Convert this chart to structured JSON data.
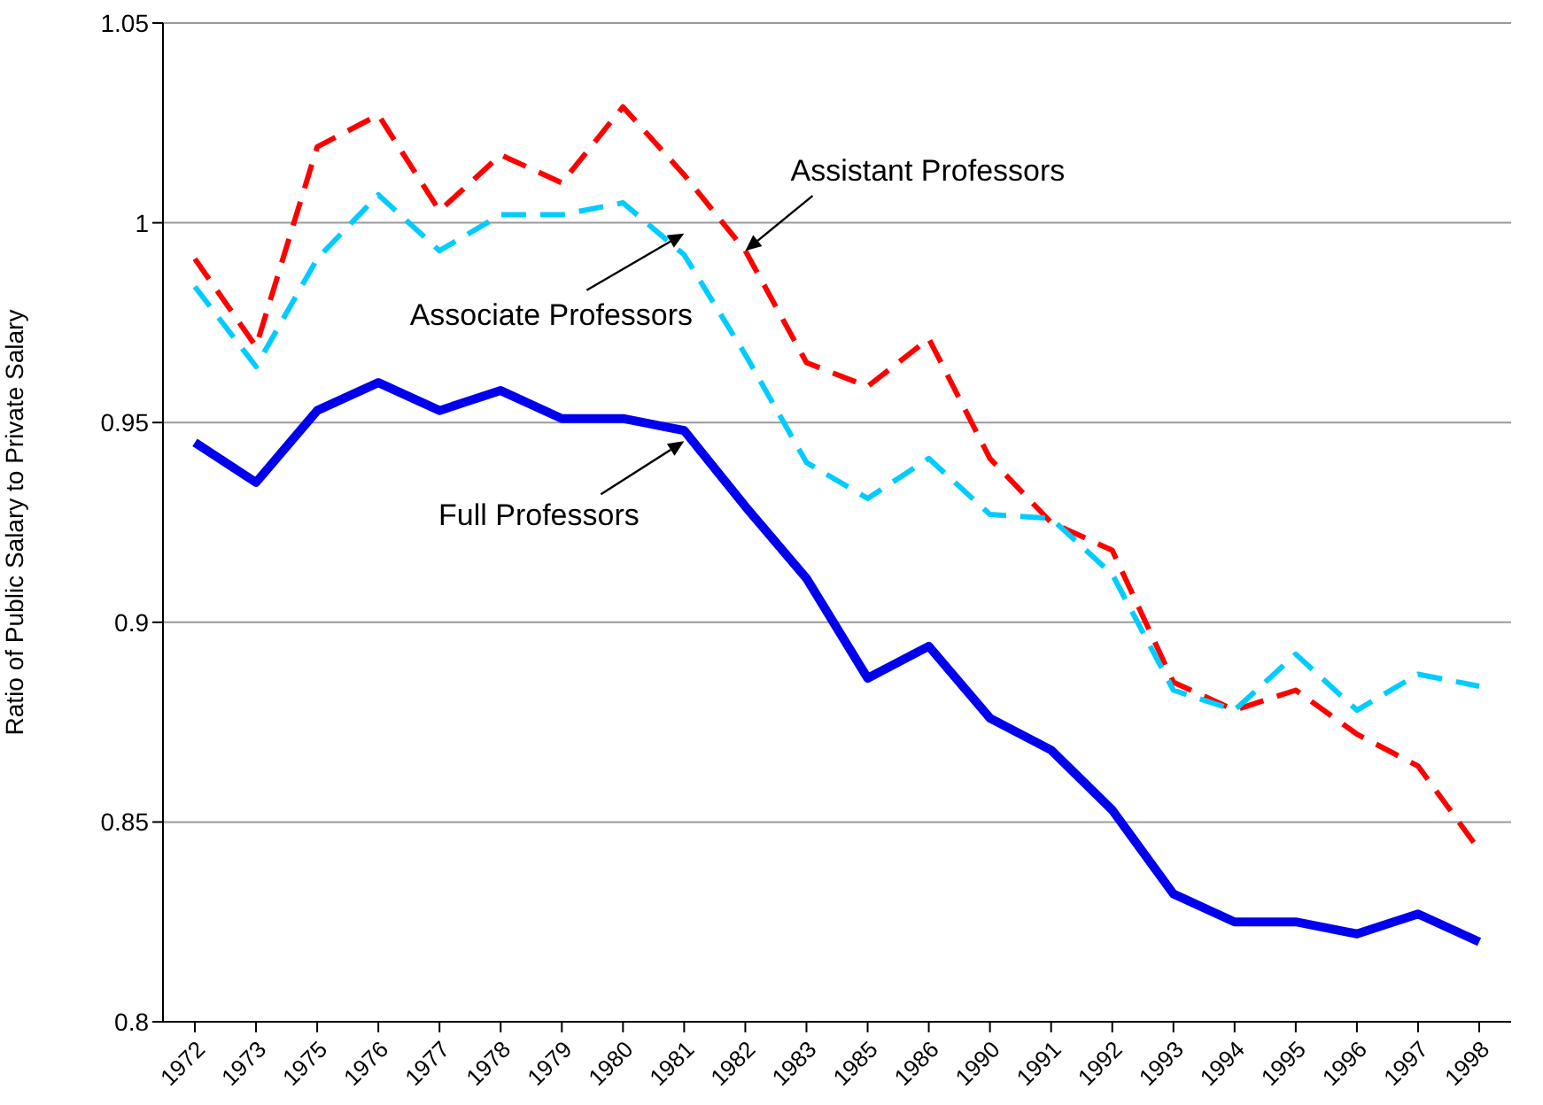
{
  "chart_data": {
    "type": "line",
    "ylabel": "Ratio of Public Salary to Private Salary",
    "categories": [
      "1972",
      "1973",
      "1975",
      "1976",
      "1977",
      "1978",
      "1979",
      "1980",
      "1981",
      "1982",
      "1983",
      "1985",
      "1986",
      "1990",
      "1991",
      "1992",
      "1993",
      "1994",
      "1995",
      "1996",
      "1997",
      "1998"
    ],
    "series": [
      {
        "name": "Assistant Professors",
        "color": "#ff0000",
        "line_style": "dashed",
        "values": [
          0.991,
          0.969,
          1.019,
          1.027,
          1.003,
          1.017,
          1.01,
          1.029,
          1.012,
          0.993,
          0.965,
          0.959,
          0.971,
          0.941,
          0.925,
          0.918,
          0.885,
          0.878,
          0.883,
          0.872,
          0.864,
          0.843
        ]
      },
      {
        "name": "Associate Professors",
        "color": "#00ccff",
        "line_style": "dashed",
        "values": [
          0.984,
          0.964,
          0.991,
          1.007,
          0.993,
          1.002,
          1.002,
          1.005,
          0.992,
          0.967,
          0.94,
          0.931,
          0.941,
          0.927,
          0.926,
          0.912,
          0.883,
          0.878,
          0.892,
          0.878,
          0.887,
          0.884
        ]
      },
      {
        "name": "Full Professors",
        "color": "#0000ee",
        "line_style": "solid",
        "values": [
          0.945,
          0.935,
          0.953,
          0.96,
          0.953,
          0.958,
          0.951,
          0.951,
          0.948,
          0.929,
          0.911,
          0.886,
          0.894,
          0.876,
          0.868,
          0.853,
          0.832,
          0.825,
          0.825,
          0.822,
          0.827,
          0.82
        ]
      }
    ],
    "ylim": [
      0.8,
      1.05
    ],
    "yticks": [
      {
        "value": 0.8,
        "label": "0.8"
      },
      {
        "value": 0.85,
        "label": "0.85"
      },
      {
        "value": 0.9,
        "label": "0.9"
      },
      {
        "value": 0.95,
        "label": "0.95"
      },
      {
        "value": 1,
        "label": "1"
      },
      {
        "value": 1.05,
        "label": "1.05"
      }
    ],
    "grid": "y",
    "legend": false,
    "marker": "none"
  }
}
